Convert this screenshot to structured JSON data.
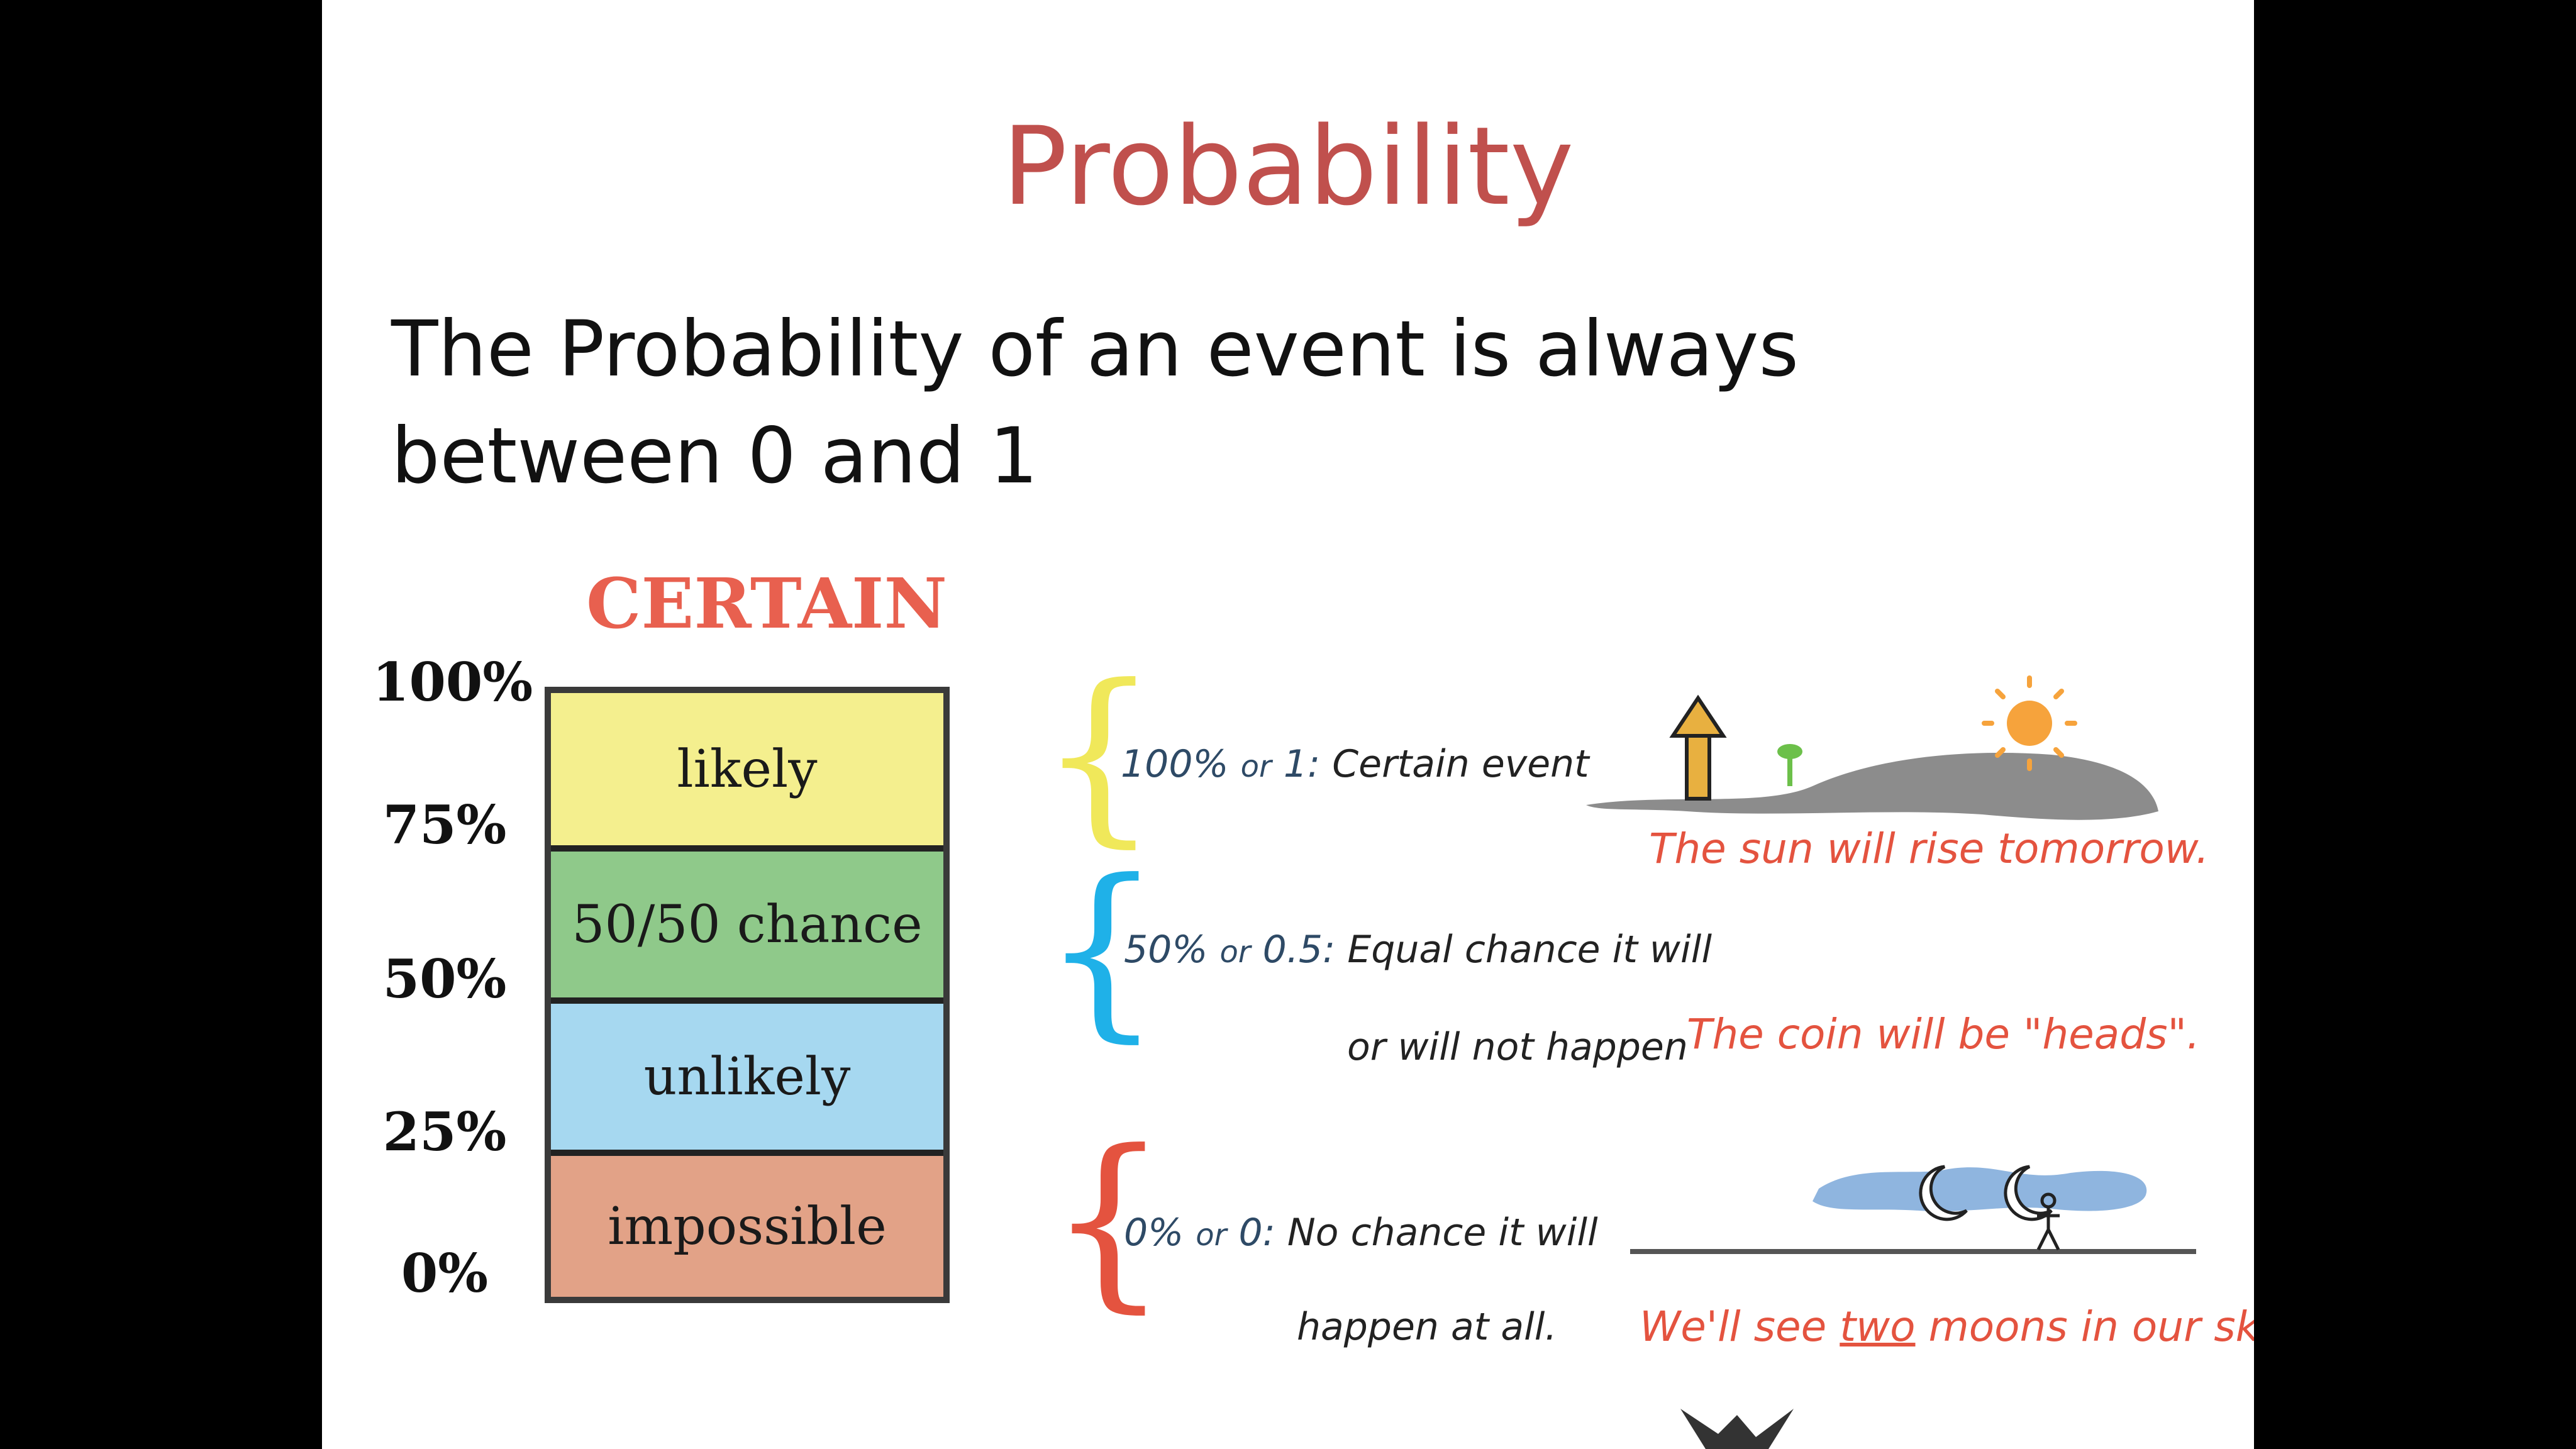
{
  "slide": {
    "title": "Probability",
    "subtitle": "The Probability of an event is always between 0 and 1"
  },
  "scale": {
    "header": "CERTAIN",
    "percent_labels": [
      "100%",
      "75%",
      "50%",
      "25%",
      "0%"
    ],
    "bands": [
      {
        "label": "likely",
        "color": "#f4ef8e"
      },
      {
        "label": "50/50 chance",
        "color": "#8fc98a"
      },
      {
        "label": "unlikely",
        "color": "#a6d8f0"
      },
      {
        "label": "impossible",
        "color": "#e2a287"
      }
    ]
  },
  "descriptions": [
    {
      "value": "100%",
      "or": "or",
      "num": "1:",
      "text": "Certain event",
      "text2": "",
      "brace_color": "#f0e85a"
    },
    {
      "value": "50%",
      "or": "or",
      "num": "0.5:",
      "text": "Equal chance it will",
      "text2": "or will not happen",
      "brace_color": "#1fb1e8"
    },
    {
      "value": "0%",
      "or": "or",
      "num": "0:",
      "text": "No chance it will",
      "text2": "happen at all.",
      "brace_color": "#e4533f"
    }
  ],
  "examples": {
    "sun": "The sun will rise tomorrow.",
    "coin": "The coin will be \"heads\".",
    "moons_prefix": "We'll see",
    "moons_emph": "two",
    "moons_suffix": "moons in our sky!"
  },
  "colors": {
    "title": "#c0504d",
    "header": "#e8604f",
    "example_text": "#e4533f",
    "desc_text": "#2e4a66"
  }
}
